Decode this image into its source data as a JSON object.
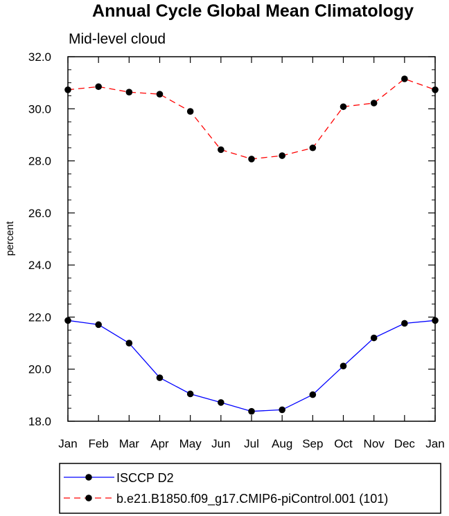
{
  "chart_data": {
    "type": "line",
    "title": "Annual Cycle Global Mean Climatology",
    "subtitle": "Mid-level cloud",
    "xlabel": "",
    "ylabel": "percent",
    "categories": [
      "Jan",
      "Feb",
      "Mar",
      "Apr",
      "May",
      "Jun",
      "Jul",
      "Aug",
      "Sep",
      "Oct",
      "Nov",
      "Dec",
      "Jan"
    ],
    "ylim": [
      18.0,
      32.0
    ],
    "yticks": [
      "18.0",
      "20.0",
      "22.0",
      "24.0",
      "26.0",
      "28.0",
      "30.0",
      "32.0"
    ],
    "grid": false,
    "legend_position": "bottom",
    "series": [
      {
        "name": "ISCCP D2",
        "color": "#0000ff",
        "dash": "solid",
        "marker": "filled-circle",
        "values": [
          21.87,
          21.71,
          21.0,
          19.67,
          19.05,
          18.72,
          18.38,
          18.44,
          19.02,
          20.12,
          21.2,
          21.76,
          21.87
        ]
      },
      {
        "name": "b.e21.B1850.f09_g17.CMIP6-piControl.001 (101)",
        "color": "#ff0000",
        "dash": "dashed",
        "marker": "filled-circle",
        "values": [
          30.73,
          30.85,
          30.64,
          30.56,
          29.9,
          28.43,
          28.07,
          28.2,
          28.5,
          30.08,
          30.22,
          31.15,
          30.73
        ]
      }
    ]
  }
}
